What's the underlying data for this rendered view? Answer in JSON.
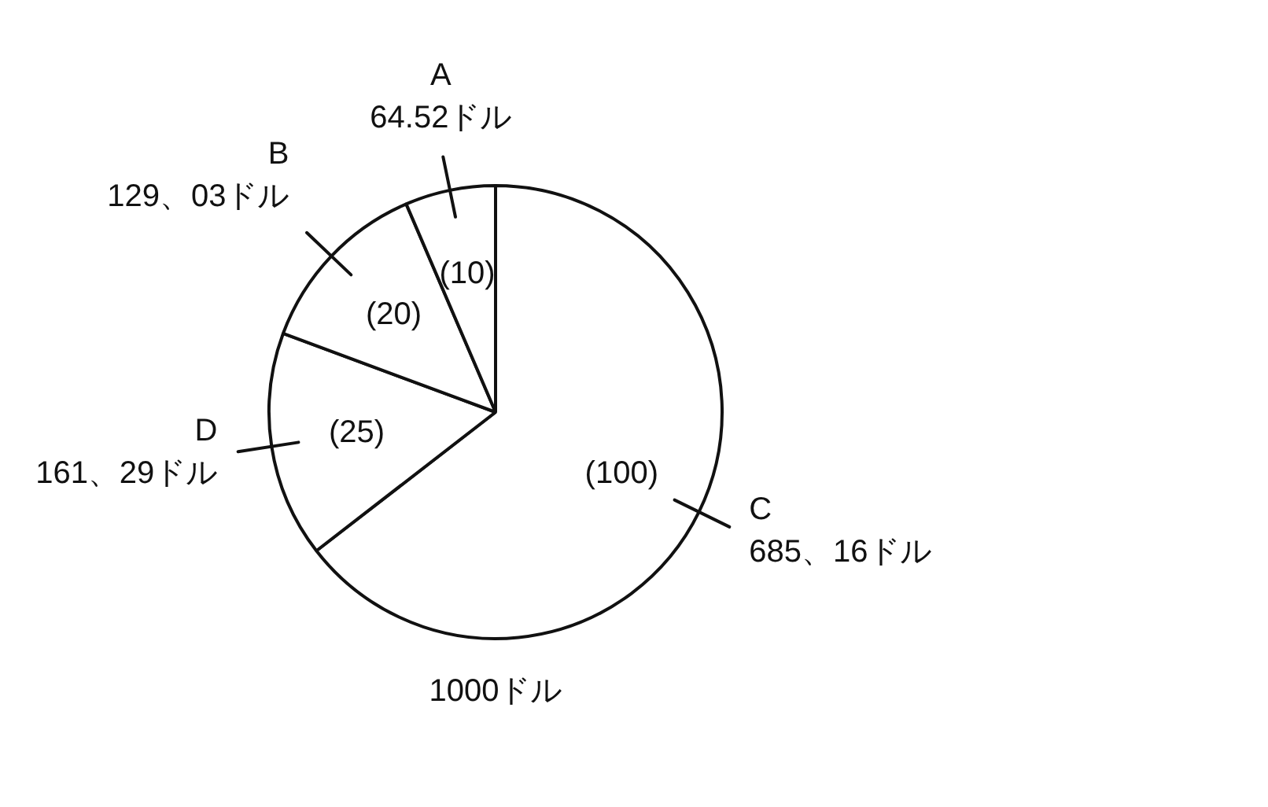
{
  "chart_data": {
    "type": "pie",
    "categories": [
      "C",
      "D",
      "B",
      "A"
    ],
    "values": [
      100,
      25,
      20,
      10
    ],
    "value_labels": [
      "(100)",
      "(25)",
      "(20)",
      "(10)"
    ],
    "colors": [
      "#ffffff",
      "#ffffff",
      "#ffffff",
      "#ffffff"
    ],
    "annotations": [
      {
        "text": "685、16ドル",
        "x": "C"
      },
      {
        "text": "161、29ドル",
        "x": "D"
      },
      {
        "text": "129、03ドル",
        "x": "B"
      },
      {
        "text": "64.52ドル",
        "x": "A"
      },
      "1000ドル"
    ]
  }
}
